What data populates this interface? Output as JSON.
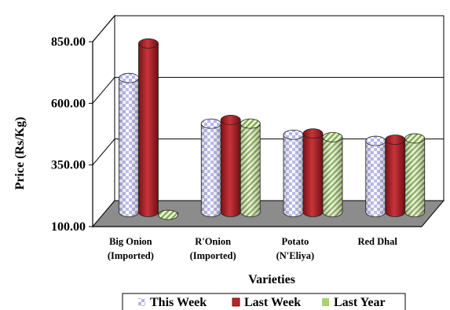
{
  "chart_data": {
    "type": "bar",
    "style": "3d-cylinder",
    "ylabel": "Price (Rs/Kg)",
    "xlabel": "Varieties",
    "ylim": [
      100,
      850
    ],
    "yticks": [
      "100.00",
      "350.00",
      "600.00",
      "850.00"
    ],
    "ytick_values": [
      100,
      350,
      600,
      850
    ],
    "categories": [
      [
        "Big Onion",
        "(Imported)"
      ],
      [
        "R'Onion",
        "(Imported)"
      ],
      [
        "Potato",
        "(N'Eliya)"
      ],
      [
        "Red Dhal"
      ]
    ],
    "series": [
      {
        "name": "This Week",
        "values": [
          650,
          465,
          420,
          395
        ],
        "color": "#c8c8f4",
        "pattern": "checker"
      },
      {
        "name": "Last Week",
        "values": [
          790,
          480,
          425,
          400
        ],
        "color": "#b5262a",
        "pattern": "solid"
      },
      {
        "name": "Last Year",
        "values": [
          95,
          465,
          410,
          405
        ],
        "color": "#c4e09a",
        "pattern": "diagonal"
      }
    ],
    "grid": true,
    "legend_position": "bottom"
  }
}
